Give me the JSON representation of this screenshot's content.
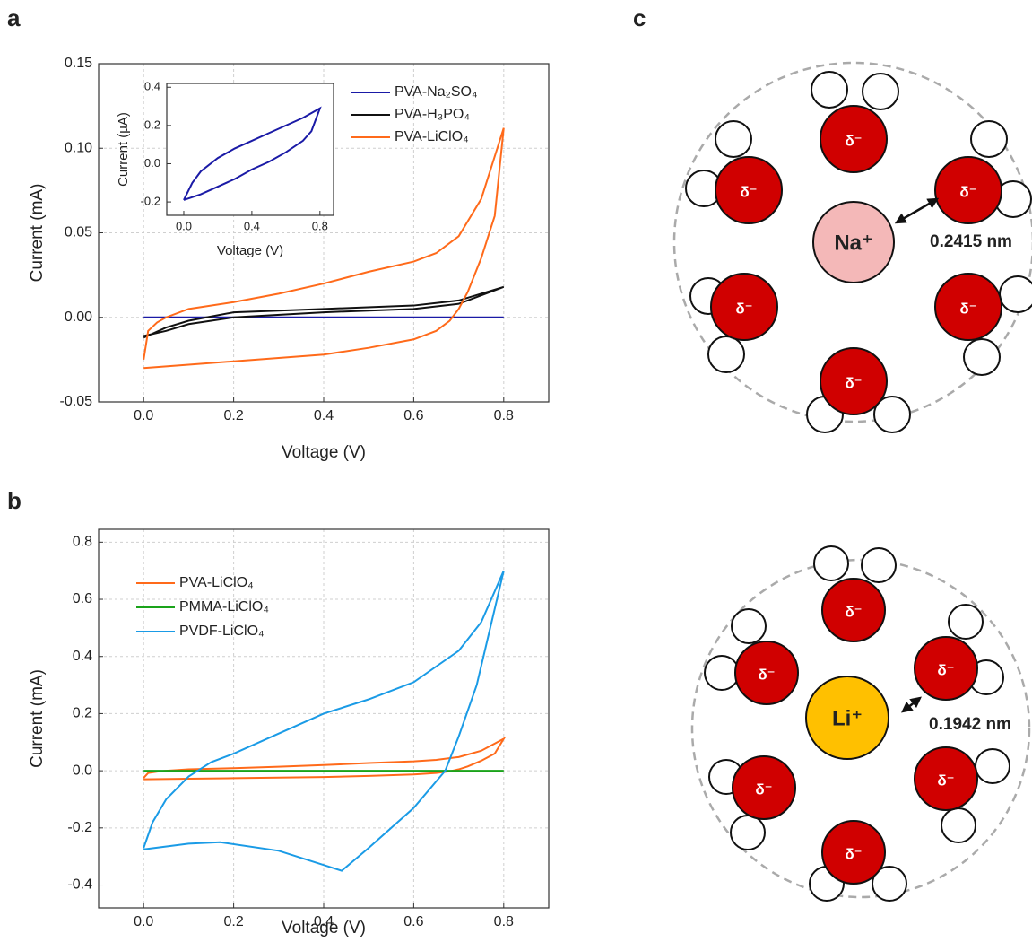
{
  "panels": {
    "a": "a",
    "b": "b",
    "c": "c"
  },
  "chart_data": [
    {
      "type": "line",
      "xlabel": "Voltage (V)",
      "ylabel": "Current (mA)",
      "grid": true,
      "xlim": [
        -0.1,
        0.9
      ],
      "ylim": [
        -0.05,
        0.15
      ],
      "xticks": [
        {
          "value": 0,
          "label": "0.0"
        },
        0.2,
        0.4,
        0.6,
        0.8
      ],
      "yticks": [
        -0.05,
        {
          "value": 0,
          "label": "0.00"
        },
        0.05,
        {
          "value": 0.1,
          "label": "0.10"
        },
        0.15
      ],
      "series": [
        {
          "name": "PVA-Na₂SO₄",
          "color": "#1a1aa6",
          "x": [
            0,
            0.8,
            0
          ],
          "values": [
            0,
            0,
            0
          ]
        },
        {
          "name": "PVA-H₃PO₄",
          "color": "#111111",
          "x": [
            0,
            0.05,
            0.1,
            0.2,
            0.4,
            0.6,
            0.7,
            0.8,
            0.7,
            0.6,
            0.4,
            0.2,
            0.1,
            0.05,
            0
          ],
          "values": [
            -0.012,
            -0.006,
            -0.002,
            0.003,
            0.005,
            0.007,
            0.01,
            0.018,
            0.008,
            0.005,
            0.003,
            0,
            -0.004,
            -0.008,
            -0.011
          ]
        },
        {
          "name": "PVA-LiClO₄",
          "color": "#ff6a1a",
          "x": [
            0,
            0.01,
            0.03,
            0.05,
            0.1,
            0.2,
            0.3,
            0.4,
            0.5,
            0.6,
            0.65,
            0.7,
            0.75,
            0.8,
            0.78,
            0.75,
            0.72,
            0.7,
            0.68,
            0.65,
            0.6,
            0.5,
            0.4,
            0.3,
            0.2,
            0.1,
            0
          ],
          "values": [
            -0.025,
            -0.008,
            -0.003,
            0,
            0.005,
            0.009,
            0.014,
            0.02,
            0.027,
            0.033,
            0.038,
            0.048,
            0.07,
            0.112,
            0.06,
            0.035,
            0.015,
            0.005,
            -0.002,
            -0.008,
            -0.013,
            -0.018,
            -0.022,
            -0.024,
            -0.026,
            -0.028,
            -0.03
          ]
        }
      ]
    },
    {
      "type": "line",
      "xlabel": "Voltage (V)",
      "ylabel": "Current (μA)",
      "grid": false,
      "xlim": [
        -0.1,
        0.88
      ],
      "ylim": [
        -0.27,
        0.42
      ],
      "xticks": [
        {
          "value": 0,
          "label": "0.0"
        },
        0.4,
        0.8
      ],
      "yticks": [
        -0.2,
        {
          "value": 0,
          "label": "0.0"
        },
        0.2,
        0.4
      ],
      "series": [
        {
          "color": "#1a1aa6",
          "x": [
            0,
            0.05,
            0.1,
            0.2,
            0.3,
            0.4,
            0.5,
            0.6,
            0.7,
            0.8,
            0.75,
            0.7,
            0.6,
            0.5,
            0.4,
            0.3,
            0.2,
            0.1,
            0
          ],
          "values": [
            -0.19,
            -0.1,
            -0.04,
            0.03,
            0.08,
            0.12,
            0.16,
            0.2,
            0.24,
            0.29,
            0.17,
            0.12,
            0.06,
            0.01,
            -0.03,
            -0.08,
            -0.12,
            -0.16,
            -0.19
          ]
        }
      ]
    },
    {
      "type": "line",
      "xlabel": "Voltage (V)",
      "ylabel": "Current (mA)",
      "grid": true,
      "xlim": [
        -0.1,
        0.9
      ],
      "ylim": [
        -0.48,
        0.845
      ],
      "xticks": [
        {
          "value": 0,
          "label": "0.0"
        },
        0.2,
        0.4,
        0.6,
        0.8
      ],
      "yticks": [
        -0.4,
        -0.2,
        {
          "value": 0,
          "label": "0.0"
        },
        0.2,
        0.4,
        0.6,
        0.8
      ],
      "series": [
        {
          "name": "PVA-LiClO₄",
          "color": "#ff6a1a",
          "x": [
            0,
            0.01,
            0.03,
            0.05,
            0.1,
            0.2,
            0.3,
            0.4,
            0.5,
            0.6,
            0.65,
            0.7,
            0.75,
            0.8,
            0.78,
            0.75,
            0.72,
            0.7,
            0.68,
            0.65,
            0.6,
            0.5,
            0.4,
            0.3,
            0.2,
            0.1,
            0
          ],
          "values": [
            -0.025,
            -0.008,
            -0.003,
            0,
            0.005,
            0.009,
            0.014,
            0.02,
            0.027,
            0.033,
            0.038,
            0.048,
            0.07,
            0.112,
            0.06,
            0.035,
            0.015,
            0.005,
            -0.002,
            -0.008,
            -0.013,
            -0.018,
            -0.022,
            -0.024,
            -0.026,
            -0.028,
            -0.03
          ]
        },
        {
          "name": "PMMA-LiClO₄",
          "color": "#1aa31a",
          "x": [
            0,
            0.8,
            0
          ],
          "values": [
            0,
            0,
            0
          ]
        },
        {
          "name": "PVDF-LiClO₄",
          "color": "#1a9be6",
          "x": [
            0,
            0.02,
            0.05,
            0.1,
            0.15,
            0.2,
            0.3,
            0.4,
            0.5,
            0.6,
            0.7,
            0.75,
            0.8,
            0.77,
            0.74,
            0.7,
            0.67,
            0.6,
            0.5,
            0.44,
            0.4,
            0.3,
            0.17,
            0.1,
            0
          ],
          "values": [
            -0.27,
            -0.18,
            -0.1,
            -0.02,
            0.03,
            0.06,
            0.13,
            0.2,
            0.25,
            0.31,
            0.42,
            0.52,
            0.7,
            0.5,
            0.3,
            0.12,
            0,
            -0.13,
            -0.27,
            -0.35,
            -0.33,
            -0.28,
            -0.25,
            -0.255,
            -0.275
          ]
        }
      ]
    }
  ],
  "diagram": {
    "top": {
      "ion": "Na⁺",
      "distance": "0.2415 nm",
      "molecule_label": "δ⁻"
    },
    "bottom": {
      "ion": "Li⁺",
      "distance": "0.1942 nm",
      "molecule_label": "δ⁻"
    }
  }
}
